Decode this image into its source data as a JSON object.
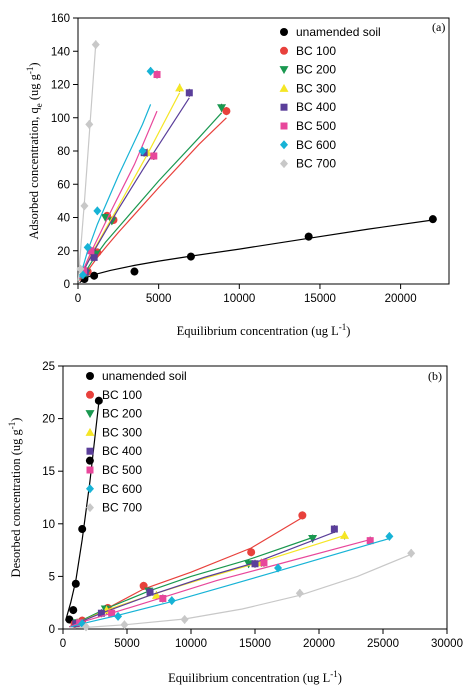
{
  "chart_data": [
    {
      "panel": "(a)",
      "type": "scatter",
      "xlabel": "Equilibrium concentration (ug L",
      "xlabel_sup": "-1",
      "xlabel_tail": ")",
      "ylabel_pre": "Adsorbed concentration, q",
      "ylabel_sub": "e",
      "ylabel_mid": " (ug g",
      "ylabel_sup": "-1",
      "ylabel_tail": ")",
      "xlim": [
        0,
        23000
      ],
      "ylim": [
        0,
        160
      ],
      "xticks": [
        0,
        5000,
        10000,
        15000,
        20000
      ],
      "yticks": [
        0,
        20,
        40,
        60,
        80,
        100,
        120,
        140,
        160
      ],
      "legend_position": "top-right",
      "series": [
        {
          "name": "unamended soil",
          "color": "#000000",
          "marker": "circle",
          "points": [
            [
              400,
              3
            ],
            [
              1000,
              5
            ],
            [
              3500,
              7.5
            ],
            [
              7000,
              16.5
            ],
            [
              14300,
              28.5
            ],
            [
              22000,
              39
            ]
          ],
          "fit": [
            [
              100,
              0.8
            ],
            [
              500,
              3.8
            ],
            [
              1000,
              5.6
            ],
            [
              2000,
              8.2
            ],
            [
              3500,
              11.2
            ],
            [
              5000,
              13.8
            ],
            [
              7000,
              16.8
            ],
            [
              10000,
              21
            ],
            [
              14300,
              27.5
            ],
            [
              18000,
              33
            ],
            [
              22000,
              38.5
            ]
          ]
        },
        {
          "name": "BC 100",
          "color": "#e8413c",
          "marker": "circle",
          "points": [
            [
              600,
              7.5
            ],
            [
              1200,
              19
            ],
            [
              1800,
              41
            ],
            [
              2200,
              38.5
            ],
            [
              9200,
              104
            ]
          ],
          "fit": [
            [
              100,
              2
            ],
            [
              600,
              8
            ],
            [
              1200,
              16
            ],
            [
              1800,
              23
            ],
            [
              2500,
              31
            ],
            [
              5000,
              58
            ],
            [
              7500,
              84
            ],
            [
              9200,
              100
            ]
          ]
        },
        {
          "name": "BC 200",
          "color": "#1a9850",
          "marker": "triangle-down",
          "points": [
            [
              500,
              6.5
            ],
            [
              1100,
              18
            ],
            [
              1700,
              40
            ],
            [
              2100,
              38
            ],
            [
              8900,
              106
            ]
          ],
          "fit": [
            [
              100,
              2.5
            ],
            [
              500,
              8
            ],
            [
              1100,
              17
            ],
            [
              1700,
              25
            ],
            [
              2500,
              34
            ],
            [
              5000,
              62
            ],
            [
              7500,
              88
            ],
            [
              8900,
              103
            ]
          ]
        },
        {
          "name": "BC 300",
          "color": "#f5e625",
          "marker": "triangle-up",
          "points": [
            [
              400,
              7
            ],
            [
              900,
              17
            ],
            [
              4300,
              79
            ],
            [
              6300,
              118
            ]
          ],
          "fit": [
            [
              100,
              3
            ],
            [
              400,
              9
            ],
            [
              900,
              19
            ],
            [
              2000,
              38
            ],
            [
              4300,
              78
            ],
            [
              6300,
              115
            ]
          ]
        },
        {
          "name": "BC 400",
          "color": "#5a3e9a",
          "marker": "square",
          "points": [
            [
              450,
              7
            ],
            [
              1000,
              16
            ],
            [
              4100,
              79
            ],
            [
              6900,
              115
            ]
          ],
          "fit": [
            [
              100,
              3
            ],
            [
              450,
              10
            ],
            [
              1000,
              20
            ],
            [
              2500,
              45
            ],
            [
              4100,
              70
            ],
            [
              5500,
              91
            ],
            [
              6900,
              112
            ]
          ]
        },
        {
          "name": "BC 500",
          "color": "#e8479b",
          "marker": "square",
          "points": [
            [
              350,
              8
            ],
            [
              800,
              20
            ],
            [
              4700,
              77
            ],
            [
              4900,
              126
            ]
          ],
          "fit": [
            [
              100,
              3
            ],
            [
              350,
              9
            ],
            [
              800,
              19
            ],
            [
              2000,
              43
            ],
            [
              3500,
              72
            ],
            [
              4900,
              104
            ]
          ]
        },
        {
          "name": "BC 600",
          "color": "#17b3d6",
          "marker": "diamond",
          "points": [
            [
              300,
              5.5
            ],
            [
              600,
              22
            ],
            [
              1200,
              44
            ],
            [
              4000,
              80
            ],
            [
              4500,
              128
            ]
          ],
          "fit": [
            [
              100,
              4
            ],
            [
              300,
              10
            ],
            [
              600,
              20
            ],
            [
              1200,
              36
            ],
            [
              2500,
              65
            ],
            [
              4000,
              96
            ],
            [
              4500,
              108
            ]
          ]
        },
        {
          "name": "BC 700",
          "color": "#c8c8c8",
          "marker": "diamond",
          "points": [
            [
              150,
              9
            ],
            [
              400,
              47
            ],
            [
              700,
              96
            ],
            [
              1100,
              144
            ]
          ],
          "fit": [
            [
              20,
              2
            ],
            [
              150,
              19
            ],
            [
              400,
              50
            ],
            [
              700,
              90
            ],
            [
              1100,
              144
            ]
          ]
        }
      ]
    },
    {
      "panel": "(b)",
      "type": "scatter",
      "xlabel": "Equilibrium concentration (ug L",
      "xlabel_sup": "-1",
      "xlabel_tail": ")",
      "ylabel_pre": "Desorbed concentration (ug g",
      "ylabel_sup": "-1",
      "ylabel_tail": ")",
      "xlim": [
        0,
        30000
      ],
      "ylim": [
        0,
        25
      ],
      "xticks": [
        0,
        5000,
        10000,
        15000,
        20000,
        25000,
        30000
      ],
      "yticks": [
        0,
        5,
        10,
        15,
        20,
        25
      ],
      "legend_position": "top-left",
      "series": [
        {
          "name": "unamended soil",
          "color": "#000000",
          "marker": "circle",
          "points": [
            [
              500,
              0.9
            ],
            [
              800,
              1.8
            ],
            [
              1000,
              4.3
            ],
            [
              1500,
              9.5
            ],
            [
              2100,
              16
            ],
            [
              2800,
              21.7
            ]
          ],
          "fit": [
            [
              200,
              0.8
            ],
            [
              600,
              2.5
            ],
            [
              1000,
              4.6
            ],
            [
              1500,
              8.5
            ],
            [
              2100,
              14
            ],
            [
              2800,
              21.5
            ]
          ]
        },
        {
          "name": "BC 100",
          "color": "#e8413c",
          "marker": "circle",
          "points": [
            [
              900,
              0.5
            ],
            [
              1500,
              0.8
            ],
            [
              3500,
              2.0
            ],
            [
              6300,
              4.1
            ],
            [
              14700,
              7.3
            ],
            [
              18700,
              10.8
            ]
          ],
          "fit": [
            [
              500,
              0.2
            ],
            [
              1500,
              0.8
            ],
            [
              3500,
              2.0
            ],
            [
              6300,
              3.8
            ],
            [
              10000,
              5.4
            ],
            [
              14700,
              7.7
            ],
            [
              18700,
              10.6
            ]
          ]
        },
        {
          "name": "BC 200",
          "color": "#1a9850",
          "marker": "triangle-down",
          "points": [
            [
              1100,
              0.6
            ],
            [
              3300,
              1.9
            ],
            [
              6700,
              3.6
            ],
            [
              14500,
              6.2
            ],
            [
              19500,
              8.6
            ]
          ],
          "fit": [
            [
              500,
              0.2
            ],
            [
              1100,
              0.6
            ],
            [
              3300,
              1.9
            ],
            [
              6700,
              3.6
            ],
            [
              10000,
              5.0
            ],
            [
              14500,
              6.6
            ],
            [
              19500,
              8.7
            ]
          ]
        },
        {
          "name": "BC 300",
          "color": "#f5e625",
          "marker": "triangle-up",
          "points": [
            [
              1200,
              0.6
            ],
            [
              3400,
              1.8
            ],
            [
              7300,
              3.2
            ],
            [
              15500,
              6.3
            ],
            [
              22000,
              8.9
            ]
          ],
          "fit": [
            [
              500,
              0.2
            ],
            [
              1200,
              0.6
            ],
            [
              3400,
              1.8
            ],
            [
              7300,
              3.4
            ],
            [
              11000,
              4.8
            ],
            [
              15500,
              6.4
            ],
            [
              22000,
              8.9
            ]
          ]
        },
        {
          "name": "BC 400",
          "color": "#5a3e9a",
          "marker": "square",
          "points": [
            [
              1000,
              0.5
            ],
            [
              3000,
              1.5
            ],
            [
              6800,
              3.5
            ],
            [
              15000,
              6.2
            ],
            [
              21200,
              9.5
            ]
          ],
          "fit": [
            [
              500,
              0.2
            ],
            [
              1000,
              0.5
            ],
            [
              3000,
              1.5
            ],
            [
              6800,
              3.2
            ],
            [
              11000,
              4.9
            ],
            [
              15000,
              6.3
            ],
            [
              21200,
              9.2
            ]
          ]
        },
        {
          "name": "BC 500",
          "color": "#e8479b",
          "marker": "square",
          "points": [
            [
              1300,
              0.6
            ],
            [
              3800,
              1.5
            ],
            [
              7800,
              2.9
            ],
            [
              15700,
              6.3
            ],
            [
              24000,
              8.4
            ]
          ],
          "fit": [
            [
              500,
              0.2
            ],
            [
              1300,
              0.6
            ],
            [
              3800,
              1.5
            ],
            [
              7800,
              3.0
            ],
            [
              12000,
              4.6
            ],
            [
              15700,
              5.8
            ],
            [
              24000,
              8.5
            ]
          ]
        },
        {
          "name": "BC 600",
          "color": "#17b3d6",
          "marker": "diamond",
          "points": [
            [
              1500,
              0.5
            ],
            [
              4300,
              1.2
            ],
            [
              8500,
              2.7
            ],
            [
              16800,
              5.8
            ],
            [
              25500,
              8.8
            ]
          ],
          "fit": [
            [
              600,
              0.2
            ],
            [
              1500,
              0.5
            ],
            [
              4300,
              1.3
            ],
            [
              8500,
              2.6
            ],
            [
              12500,
              4.0
            ],
            [
              16800,
              5.5
            ],
            [
              25500,
              8.6
            ]
          ]
        },
        {
          "name": "BC 700",
          "color": "#c8c8c8",
          "marker": "diamond",
          "points": [
            [
              1800,
              0.2
            ],
            [
              4800,
              0.4
            ],
            [
              9500,
              0.9
            ],
            [
              18500,
              3.4
            ],
            [
              27200,
              7.2
            ]
          ],
          "fit": [
            [
              1000,
              0.1
            ],
            [
              1800,
              0.15
            ],
            [
              4800,
              0.4
            ],
            [
              9500,
              0.95
            ],
            [
              14000,
              1.9
            ],
            [
              18500,
              3.2
            ],
            [
              23000,
              5.0
            ],
            [
              27200,
              7.1
            ]
          ]
        }
      ]
    }
  ]
}
